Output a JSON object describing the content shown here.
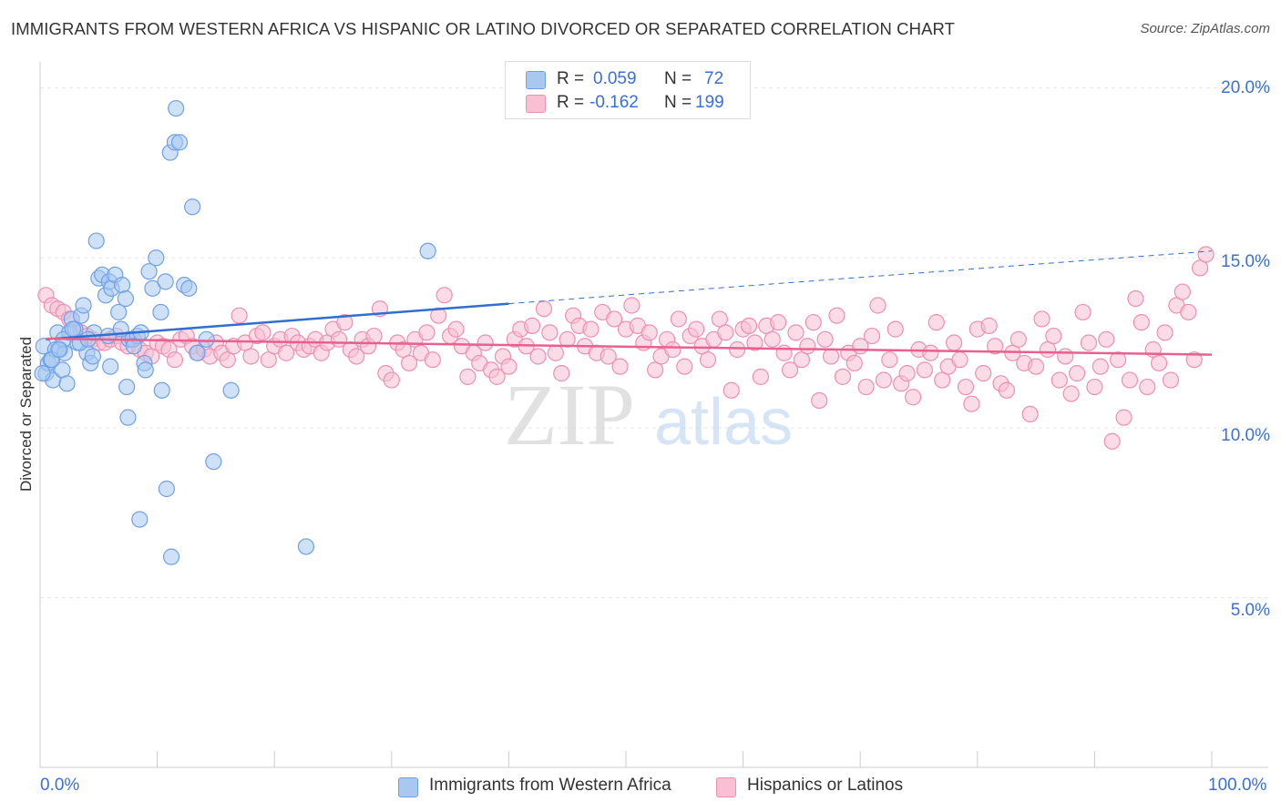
{
  "header": {
    "title": "IMMIGRANTS FROM WESTERN AFRICA VS HISPANIC OR LATINO DIVORCED OR SEPARATED CORRELATION CHART",
    "source": "Source: ZipAtlas.com"
  },
  "watermark": {
    "zip": "ZIP",
    "atlas": "atlas"
  },
  "legend": {
    "rows": [
      {
        "r_label": "R = ",
        "r_value": "0.059",
        "n_label": "N = ",
        "n_value": "72",
        "color": "#6fa0e8"
      },
      {
        "r_label": "R = ",
        "r_value": "-0.162",
        "n_label": "N = ",
        "n_value": "199",
        "color": "#f08cb0"
      }
    ]
  },
  "colors": {
    "blue_fill": "#a8c8f0",
    "blue_stroke": "#6fa0e8",
    "blue_line": "#2f6fd0",
    "pink_fill": "#f8c0d2",
    "pink_stroke": "#ee8fb2",
    "pink_line": "#e8608f",
    "axis_text": "#3b6fd6",
    "grid": "#e5e5e5"
  },
  "chart_data": {
    "type": "scatter",
    "title": "IMMIGRANTS FROM WESTERN AFRICA VS HISPANIC OR LATINO DIVORCED OR SEPARATED CORRELATION CHART",
    "xlabel": "",
    "ylabel": "Divorced or Separated",
    "xlim": [
      0,
      100
    ],
    "ylim": [
      0,
      20.5
    ],
    "x_tick_labels": [
      "0.0%",
      "100.0%"
    ],
    "y_ticks": [
      5,
      10,
      15,
      20
    ],
    "y_tick_labels": [
      "5.0%",
      "10.0%",
      "15.0%",
      "20.0%"
    ],
    "grid": true,
    "legend_position": "bottom",
    "series": [
      {
        "name": "Immigrants from Western Africa",
        "color": "#6fa0e8",
        "trend": {
          "x": [
            0.5,
            40
          ],
          "y": [
            12.6,
            13.65
          ],
          "dashed_to": [
            100,
            15.2
          ]
        },
        "points": [
          [
            0.3,
            12.4
          ],
          [
            0.5,
            11.6
          ],
          [
            0.7,
            11.9
          ],
          [
            0.9,
            12.0
          ],
          [
            1.1,
            11.4
          ],
          [
            1.3,
            12.3
          ],
          [
            1.5,
            12.8
          ],
          [
            1.7,
            12.3
          ],
          [
            1.9,
            11.7
          ],
          [
            2.1,
            12.2
          ],
          [
            2.3,
            11.3
          ],
          [
            2.5,
            12.8
          ],
          [
            2.7,
            13.2
          ],
          [
            3.0,
            12.9
          ],
          [
            3.2,
            12.5
          ],
          [
            3.5,
            13.3
          ],
          [
            3.7,
            13.6
          ],
          [
            4.0,
            12.2
          ],
          [
            4.3,
            11.9
          ],
          [
            4.6,
            12.8
          ],
          [
            5.0,
            14.4
          ],
          [
            5.3,
            14.5
          ],
          [
            5.6,
            13.9
          ],
          [
            5.9,
            14.3
          ],
          [
            6.1,
            14.1
          ],
          [
            6.4,
            14.5
          ],
          [
            6.7,
            13.4
          ],
          [
            7.0,
            14.2
          ],
          [
            7.3,
            13.8
          ],
          [
            7.6,
            12.6
          ],
          [
            7.9,
            12.6
          ],
          [
            8.3,
            12.7
          ],
          [
            8.6,
            12.8
          ],
          [
            8.9,
            11.9
          ],
          [
            9.3,
            14.6
          ],
          [
            9.6,
            14.1
          ],
          [
            9.9,
            15.0
          ],
          [
            10.3,
            13.4
          ],
          [
            10.7,
            14.3
          ],
          [
            11.1,
            18.1
          ],
          [
            11.5,
            18.4
          ],
          [
            11.9,
            18.4
          ],
          [
            12.3,
            14.2
          ],
          [
            12.7,
            14.1
          ],
          [
            13.0,
            16.5
          ],
          [
            13.4,
            12.2
          ],
          [
            14.2,
            12.6
          ],
          [
            14.8,
            9.0
          ],
          [
            16.3,
            11.1
          ],
          [
            8.5,
            7.3
          ],
          [
            10.4,
            11.1
          ],
          [
            7.4,
            11.2
          ],
          [
            11.2,
            6.2
          ],
          [
            7.5,
            10.3
          ],
          [
            10.8,
            8.2
          ],
          [
            22.7,
            6.5
          ],
          [
            11.6,
            19.4
          ],
          [
            4.8,
            15.5
          ],
          [
            33.1,
            15.2
          ],
          [
            4.5,
            12.1
          ],
          [
            1.0,
            12.0
          ],
          [
            2.0,
            12.6
          ],
          [
            6.0,
            11.8
          ],
          [
            8.0,
            12.4
          ],
          [
            9.0,
            11.7
          ],
          [
            3.4,
            12.5
          ],
          [
            5.8,
            12.7
          ],
          [
            1.6,
            12.3
          ],
          [
            2.8,
            12.9
          ],
          [
            0.2,
            11.6
          ],
          [
            4.1,
            12.6
          ],
          [
            6.9,
            12.9
          ]
        ]
      },
      {
        "name": "Hispanics or Latinos",
        "color": "#ee8fb2",
        "trend": {
          "x": [
            0.5,
            100
          ],
          "y": [
            12.62,
            12.15
          ]
        },
        "points": [
          [
            0.5,
            13.9
          ],
          [
            1.0,
            13.6
          ],
          [
            1.5,
            13.5
          ],
          [
            2.0,
            13.4
          ],
          [
            2.5,
            13.2
          ],
          [
            3.0,
            12.9
          ],
          [
            3.5,
            12.8
          ],
          [
            4.0,
            12.7
          ],
          [
            4.5,
            12.6
          ],
          [
            5.0,
            12.5
          ],
          [
            5.5,
            12.5
          ],
          [
            6.0,
            12.6
          ],
          [
            6.5,
            12.7
          ],
          [
            7.0,
            12.5
          ],
          [
            7.5,
            12.4
          ],
          [
            8.0,
            12.6
          ],
          [
            8.5,
            12.3
          ],
          [
            9.0,
            12.2
          ],
          [
            9.5,
            12.1
          ],
          [
            10.0,
            12.5
          ],
          [
            10.5,
            12.4
          ],
          [
            11.0,
            12.3
          ],
          [
            11.5,
            12.0
          ],
          [
            12.0,
            12.6
          ],
          [
            12.5,
            12.7
          ],
          [
            13.0,
            12.4
          ],
          [
            13.5,
            12.2
          ],
          [
            14.0,
            12.3
          ],
          [
            14.5,
            12.1
          ],
          [
            15.0,
            12.5
          ],
          [
            15.5,
            12.2
          ],
          [
            16.0,
            12.0
          ],
          [
            16.5,
            12.4
          ],
          [
            17.0,
            13.3
          ],
          [
            17.5,
            12.5
          ],
          [
            18.0,
            12.1
          ],
          [
            18.5,
            12.7
          ],
          [
            19.0,
            12.8
          ],
          [
            19.5,
            12.0
          ],
          [
            20.0,
            12.4
          ],
          [
            20.5,
            12.6
          ],
          [
            21.0,
            12.2
          ],
          [
            21.5,
            12.7
          ],
          [
            22.0,
            12.5
          ],
          [
            22.5,
            12.3
          ],
          [
            23.0,
            12.4
          ],
          [
            23.5,
            12.6
          ],
          [
            24.0,
            12.2
          ],
          [
            24.5,
            12.5
          ],
          [
            25.0,
            12.9
          ],
          [
            25.5,
            12.6
          ],
          [
            26.0,
            13.1
          ],
          [
            26.5,
            12.3
          ],
          [
            27.0,
            12.1
          ],
          [
            27.5,
            12.6
          ],
          [
            28.0,
            12.4
          ],
          [
            28.5,
            12.7
          ],
          [
            29.0,
            13.5
          ],
          [
            29.5,
            11.6
          ],
          [
            30.0,
            11.4
          ],
          [
            30.5,
            12.5
          ],
          [
            31.0,
            12.3
          ],
          [
            31.5,
            11.9
          ],
          [
            32.0,
            12.6
          ],
          [
            32.5,
            12.2
          ],
          [
            33.0,
            12.8
          ],
          [
            33.5,
            12.0
          ],
          [
            34.0,
            13.3
          ],
          [
            34.5,
            13.9
          ],
          [
            35.0,
            12.7
          ],
          [
            35.5,
            12.9
          ],
          [
            36.0,
            12.4
          ],
          [
            36.5,
            11.5
          ],
          [
            37.0,
            12.2
          ],
          [
            37.5,
            11.9
          ],
          [
            38.0,
            12.5
          ],
          [
            38.5,
            11.7
          ],
          [
            39.0,
            11.5
          ],
          [
            39.5,
            12.1
          ],
          [
            40.0,
            11.8
          ],
          [
            40.5,
            12.6
          ],
          [
            41.0,
            12.9
          ],
          [
            41.5,
            12.4
          ],
          [
            42.0,
            13.0
          ],
          [
            42.5,
            12.1
          ],
          [
            43.0,
            13.5
          ],
          [
            43.5,
            12.8
          ],
          [
            44.0,
            12.2
          ],
          [
            44.5,
            11.6
          ],
          [
            45.0,
            12.6
          ],
          [
            45.5,
            13.3
          ],
          [
            46.0,
            13.0
          ],
          [
            46.5,
            12.4
          ],
          [
            47.0,
            12.9
          ],
          [
            47.5,
            12.2
          ],
          [
            48.0,
            13.4
          ],
          [
            48.5,
            12.1
          ],
          [
            49.0,
            13.2
          ],
          [
            49.5,
            11.8
          ],
          [
            50.0,
            12.9
          ],
          [
            50.5,
            13.6
          ],
          [
            51.0,
            13.0
          ],
          [
            51.5,
            12.5
          ],
          [
            52.0,
            12.8
          ],
          [
            52.5,
            11.7
          ],
          [
            53.0,
            12.1
          ],
          [
            53.5,
            12.6
          ],
          [
            54.0,
            12.3
          ],
          [
            54.5,
            13.2
          ],
          [
            55.0,
            11.8
          ],
          [
            55.5,
            12.7
          ],
          [
            56.0,
            12.9
          ],
          [
            56.5,
            12.4
          ],
          [
            57.0,
            12.0
          ],
          [
            57.5,
            12.6
          ],
          [
            58.0,
            13.2
          ],
          [
            58.5,
            12.8
          ],
          [
            59.0,
            11.1
          ],
          [
            59.5,
            12.3
          ],
          [
            60.0,
            12.9
          ],
          [
            60.5,
            13.0
          ],
          [
            61.0,
            12.5
          ],
          [
            61.5,
            11.5
          ],
          [
            62.0,
            13.0
          ],
          [
            62.5,
            12.6
          ],
          [
            63.0,
            13.1
          ],
          [
            63.5,
            12.2
          ],
          [
            64.0,
            11.7
          ],
          [
            64.5,
            12.8
          ],
          [
            65.0,
            12.0
          ],
          [
            65.5,
            12.4
          ],
          [
            66.0,
            13.1
          ],
          [
            66.5,
            10.8
          ],
          [
            67.0,
            12.6
          ],
          [
            67.5,
            12.1
          ],
          [
            68.0,
            13.3
          ],
          [
            68.5,
            11.5
          ],
          [
            69.0,
            12.2
          ],
          [
            69.5,
            11.9
          ],
          [
            70.0,
            12.4
          ],
          [
            70.5,
            11.2
          ],
          [
            71.0,
            12.7
          ],
          [
            71.5,
            13.6
          ],
          [
            72.0,
            11.4
          ],
          [
            72.5,
            12.0
          ],
          [
            73.0,
            12.9
          ],
          [
            73.5,
            11.3
          ],
          [
            74.0,
            11.6
          ],
          [
            74.5,
            10.9
          ],
          [
            75.0,
            12.3
          ],
          [
            75.5,
            11.7
          ],
          [
            76.0,
            12.2
          ],
          [
            76.5,
            13.1
          ],
          [
            77.0,
            11.4
          ],
          [
            77.5,
            11.8
          ],
          [
            78.0,
            12.5
          ],
          [
            78.5,
            12.0
          ],
          [
            79.0,
            11.2
          ],
          [
            79.5,
            10.7
          ],
          [
            80.0,
            12.9
          ],
          [
            80.5,
            11.6
          ],
          [
            81.0,
            13.0
          ],
          [
            81.5,
            12.4
          ],
          [
            82.0,
            11.3
          ],
          [
            82.5,
            11.1
          ],
          [
            83.0,
            12.2
          ],
          [
            83.5,
            12.6
          ],
          [
            84.0,
            11.9
          ],
          [
            84.5,
            10.4
          ],
          [
            85.0,
            11.8
          ],
          [
            85.5,
            13.2
          ],
          [
            86.0,
            12.3
          ],
          [
            86.5,
            12.7
          ],
          [
            87.0,
            11.4
          ],
          [
            87.5,
            12.1
          ],
          [
            88.0,
            11.0
          ],
          [
            88.5,
            11.6
          ],
          [
            89.0,
            13.4
          ],
          [
            89.5,
            12.5
          ],
          [
            90.0,
            11.2
          ],
          [
            90.5,
            11.8
          ],
          [
            91.0,
            12.6
          ],
          [
            91.5,
            9.6
          ],
          [
            92.0,
            12.0
          ],
          [
            92.5,
            10.3
          ],
          [
            93.0,
            11.4
          ],
          [
            93.5,
            13.8
          ],
          [
            94.0,
            13.1
          ],
          [
            94.5,
            11.2
          ],
          [
            95.0,
            12.3
          ],
          [
            95.5,
            11.9
          ],
          [
            96.0,
            12.8
          ],
          [
            96.5,
            11.4
          ],
          [
            97.0,
            13.6
          ],
          [
            97.5,
            14.0
          ],
          [
            98.0,
            13.4
          ],
          [
            98.5,
            12.0
          ],
          [
            99.0,
            14.7
          ],
          [
            99.5,
            15.1
          ]
        ]
      }
    ]
  }
}
